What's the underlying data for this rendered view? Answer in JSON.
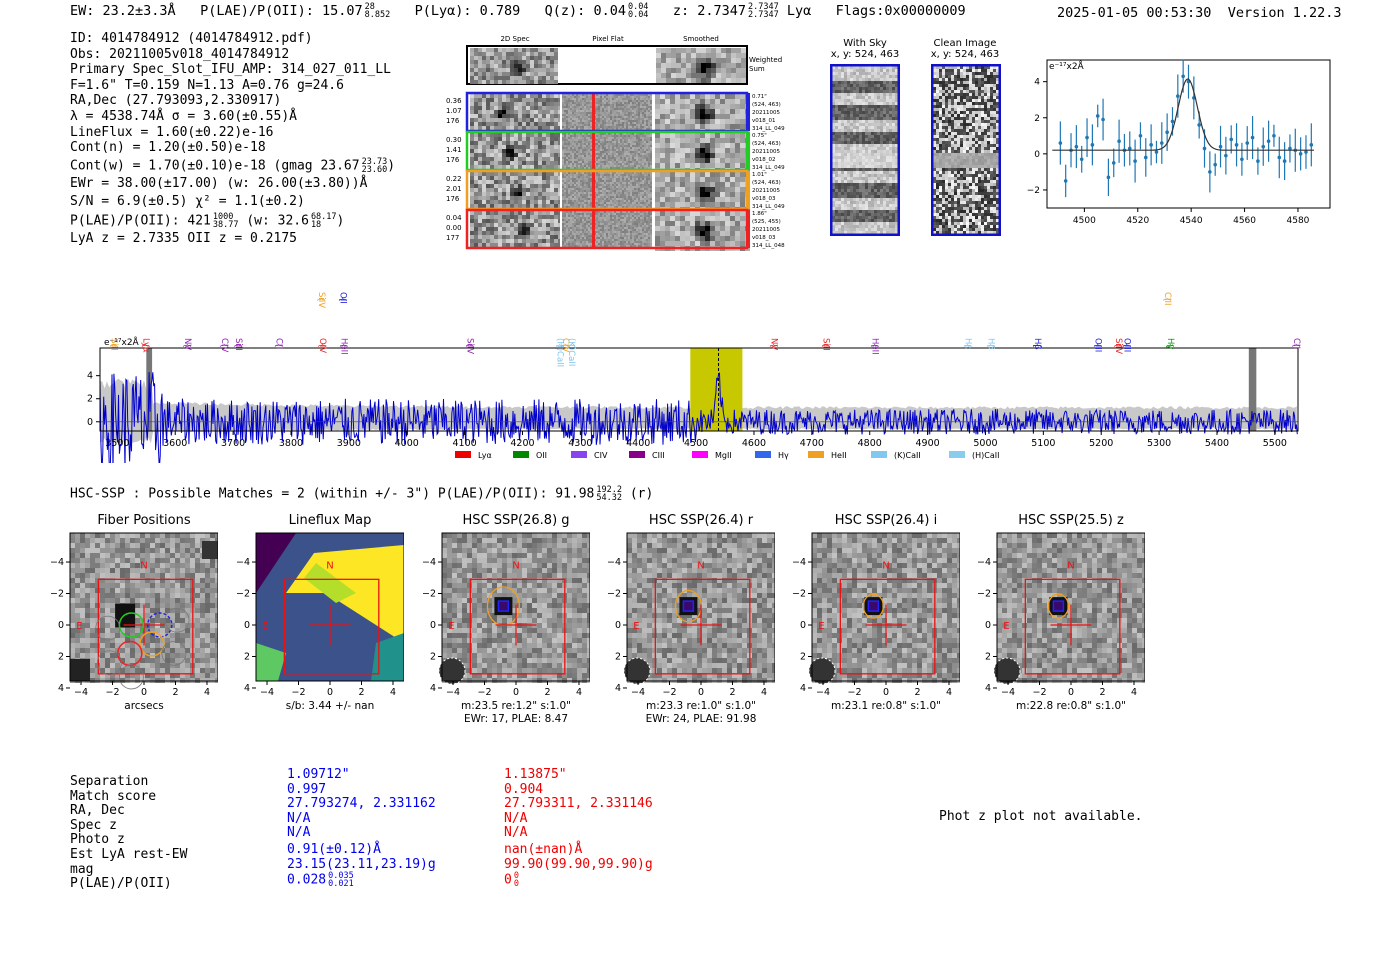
{
  "header": {
    "ew": "EW: 23.2±3.3Å",
    "plae_label": "P(LAE)/P(OII): 15.07",
    "plae_hi": "28",
    "plae_lo": "8.852",
    "plya": "P(Lyα): 0.789",
    "qz_label": "Q(z): 0.04",
    "qz_hi": "0.04",
    "qz_lo": "0.04",
    "z_label": "z: 2.7347",
    "z_hi": "2.7347",
    "z_lo": "2.7347",
    "line": "Lyα",
    "flags": "Flags:0x00000009",
    "datetime": "2025-01-05 00:53:30",
    "version": "Version 1.22.3"
  },
  "info": {
    "id": "ID: 4014784912 (4014784912.pdf)",
    "obs": "Obs: 20211005v018_4014784912",
    "primary": "Primary Spec_Slot_IFU_AMP: 314_027_011_LL",
    "fiber": "F=1.6\"  T=0.159  N=1.13  A=0.76  g=24.6",
    "radec": "RA,Dec (27.793093,2.330917)",
    "lambda": "λ = 4538.74Å  σ = 3.60(±0.55)Å",
    "lineflux": "LineFlux = 1.60(±0.22)e-16",
    "contn": "Cont(n) = 1.20(±0.50)e-18",
    "contw": "Cont(w) = 1.70(±0.10)e-18 (gmag 23.67",
    "contw_hi": "23.73",
    "contw_lo": "23.60",
    "ewr": "EWr = 38.00(±17.00) (w: 26.00(±3.80))Å",
    "sn": "S/N = 6.9(±0.5)  χ² = 1.1(±0.2)",
    "plae": "P(LAE)/P(OII): 421",
    "plae_hi": "1000",
    "plae_lo": "38.77",
    "plae_w": "(w: 32.6",
    "plae_w_hi": "68.17",
    "plae_w_lo": "18",
    "lyaz": "LyA z = 2.7335  OII z = 0.2175"
  },
  "spec2d": {
    "col_labels": [
      "2D Spec",
      "Pixel Flat",
      "Smoothed"
    ],
    "weighted_sum": "Weighted\nSum",
    "rows": [
      {
        "l1": "0.36",
        "l2": "1.07",
        "l3": "176",
        "r1": "0.71\"",
        "r2": "(524, 463)",
        "r3": "20211005",
        "r4": "v018_01",
        "r5": "314_LL_049",
        "color": "#2222dd"
      },
      {
        "l1": "0.30",
        "l2": "1.41",
        "l3": "176",
        "r1": "0.75\"",
        "r2": "(524, 463)",
        "r3": "20211005",
        "r4": "v018_02",
        "r5": "314_LL_049",
        "color": "#22cc22"
      },
      {
        "l1": "0.22",
        "l2": "2.01",
        "l3": "176",
        "r1": "1.01\"",
        "r2": "(524, 463)",
        "r3": "20211005",
        "r4": "v018_03",
        "r5": "314_LL_049",
        "color": "#f0a020"
      },
      {
        "l1": "0.04",
        "l2": "0.00",
        "l3": "177",
        "r1": "1.86\"",
        "r2": "(525, 455)",
        "r3": "20211005",
        "r4": "v018_03",
        "r5": "314_LL_048",
        "color": "#ee2222"
      }
    ]
  },
  "sky": {
    "with_sky": "With Sky",
    "with_sky_xy": "x, y: 524, 463",
    "clean": "Clean Image",
    "clean_xy": "x, y: 524, 463"
  },
  "line_fit": {
    "ylabel": "e⁻¹⁷x2Å",
    "xticks": [
      4500,
      4520,
      4540,
      4560,
      4580
    ],
    "yticks": [
      4,
      2,
      0,
      -2
    ],
    "xlim": [
      4486,
      4592
    ],
    "ylim": [
      -3.0,
      5.2
    ],
    "points": [
      [
        4491,
        0.6
      ],
      [
        4493,
        -1.5
      ],
      [
        4495,
        0.2
      ],
      [
        4497,
        0.4
      ],
      [
        4499,
        -0.3
      ],
      [
        4501,
        0.9
      ],
      [
        4503,
        0.5
      ],
      [
        4505,
        2.1
      ],
      [
        4507,
        1.9
      ],
      [
        4509,
        -1.3
      ],
      [
        4511,
        -0.5
      ],
      [
        4513,
        0.7
      ],
      [
        4515,
        0.2
      ],
      [
        4517,
        0.3
      ],
      [
        4519,
        -0.4
      ],
      [
        4521,
        1.0
      ],
      [
        4523,
        -0.2
      ],
      [
        4525,
        0.5
      ],
      [
        4527,
        0.1
      ],
      [
        4529,
        0.6
      ],
      [
        4531,
        1.2
      ],
      [
        4533,
        1.8
      ],
      [
        4535,
        3.2
      ],
      [
        4537,
        4.3
      ],
      [
        4539,
        4.0
      ],
      [
        4541,
        3.1
      ],
      [
        4543,
        1.6
      ],
      [
        4545,
        0.3
      ],
      [
        4547,
        -1.0
      ],
      [
        4549,
        -0.6
      ],
      [
        4551,
        0.4
      ],
      [
        4553,
        -0.1
      ],
      [
        4555,
        0.8
      ],
      [
        4557,
        0.5
      ],
      [
        4559,
        -0.3
      ],
      [
        4561,
        0.6
      ],
      [
        4563,
        0.9
      ],
      [
        4565,
        -0.4
      ],
      [
        4567,
        0.4
      ],
      [
        4569,
        0.7
      ],
      [
        4571,
        1.0
      ],
      [
        4573,
        -0.2
      ],
      [
        4575,
        -0.4
      ],
      [
        4577,
        0.3
      ],
      [
        4579,
        0.2
      ],
      [
        4581,
        0.0
      ],
      [
        4583,
        0.1
      ],
      [
        4585,
        0.5
      ]
    ],
    "fit_center": 4538.74,
    "fit_sigma": 3.6,
    "fit_amp": 3.95,
    "fit_baseline": 0.2
  },
  "full_spectrum": {
    "ylabel": "e⁻¹⁷x2Å",
    "xlim": [
      3470,
      5540
    ],
    "ylim": [
      -0.8,
      6.4
    ],
    "xticks": [
      3500,
      3600,
      3700,
      3800,
      3900,
      4000,
      4100,
      4200,
      4300,
      4400,
      4500,
      4600,
      4700,
      4800,
      4900,
      5000,
      5100,
      5200,
      5300,
      5400,
      5500
    ],
    "yticks": [
      4,
      2,
      0
    ],
    "highlight_range": [
      4490,
      4580
    ],
    "line_marker": 4538.74,
    "gray_bars": [
      [
        3550,
        3560
      ],
      [
        5455,
        5468
      ]
    ],
    "line_labels": [
      {
        "name": "SiII",
        "x": 3485,
        "color": "#f0a020",
        "row": 0
      },
      {
        "name": "Lyα",
        "x": 3540,
        "color": "#ee2222",
        "row": 0
      },
      {
        "name": "NV",
        "x": 3612,
        "color": "#9020b0",
        "row": 0
      },
      {
        "name": "CIV",
        "x": 3676,
        "color": "#9020b0",
        "row": 0
      },
      {
        "name": "SiII",
        "x": 3700,
        "color": "#9020b0",
        "row": 0
      },
      {
        "name": "CII",
        "x": 3770,
        "color": "#9020b0",
        "row": 0
      },
      {
        "name": "SiIV",
        "x": 3843,
        "color": "#f0a020",
        "row": 1
      },
      {
        "name": "OIV",
        "x": 3845,
        "color": "#ee2222",
        "row": 0
      },
      {
        "name": "OII",
        "x": 3880,
        "color": "#2222dd",
        "row": 1
      },
      {
        "name": "HeII",
        "x": 3882,
        "color": "#9020b0",
        "row": 0
      },
      {
        "name": "SiIV",
        "x": 4100,
        "color": "#9020b0",
        "row": 0
      },
      {
        "name": "(H)CaII",
        "x": 4255,
        "color": "#80c8f0",
        "row": 0
      },
      {
        "name": "CIV",
        "x": 4265,
        "color": "#f0a020",
        "row": 0
      },
      {
        "name": "(K)CaII",
        "x": 4275,
        "color": "#80c8f0",
        "row": 0
      },
      {
        "name": "NV",
        "x": 4625,
        "color": "#ee2222",
        "row": 0
      },
      {
        "name": "SiII",
        "x": 4715,
        "color": "#ee2222",
        "row": 0
      },
      {
        "name": "HeII",
        "x": 4800,
        "color": "#9020b0",
        "row": 0
      },
      {
        "name": "Hε",
        "x": 4960,
        "color": "#80c8f0",
        "row": 0
      },
      {
        "name": "Hδ",
        "x": 5000,
        "color": "#80c8f0",
        "row": 0
      },
      {
        "name": "Hβ",
        "x": 5080,
        "color": "#2222dd",
        "row": 0
      },
      {
        "name": "OIII",
        "x": 5185,
        "color": "#2222dd",
        "row": 0
      },
      {
        "name": "SiIV",
        "x": 5220,
        "color": "#ee2222",
        "row": 0
      },
      {
        "name": "OIII",
        "x": 5235,
        "color": "#2222dd",
        "row": 0
      },
      {
        "name": "CIII",
        "x": 5305,
        "color": "#f0a020",
        "row": 1
      },
      {
        "name": "Hγ",
        "x": 5310,
        "color": "#009900",
        "row": 0
      },
      {
        "name": "CII",
        "x": 5528,
        "color": "#9020b0",
        "row": 0
      }
    ],
    "legend": [
      {
        "name": "Lyα",
        "color": "#ee0000"
      },
      {
        "name": "OII",
        "color": "#008800"
      },
      {
        "name": "CIV",
        "color": "#8844ee"
      },
      {
        "name": "CIII",
        "color": "#880088"
      },
      {
        "name": "MgII",
        "color": "#ff00ff"
      },
      {
        "name": "Hγ",
        "color": "#3366ee"
      },
      {
        "name": "HeII",
        "color": "#f0a020"
      },
      {
        "name": "(K)CaII",
        "color": "#80c8f0"
      },
      {
        "name": "(H)CaII",
        "color": "#88ccee"
      }
    ]
  },
  "hsc": {
    "header": "HSC-SSP : Possible Matches = 2 (within +/- 3\")  P(LAE)/P(OII): 91.98",
    "header_hi": "192.2",
    "header_lo": "54.32",
    "header_band": "(r)",
    "cutouts": [
      {
        "title": "Fiber Positions",
        "cap1": "arcsecs",
        "cap2": "",
        "kind": "fiber"
      },
      {
        "title": "Lineflux Map",
        "cap1": "s/b: 3.44 +/- nan",
        "cap2": "",
        "kind": "lineflux"
      },
      {
        "title": "HSC SSP(26.8) g",
        "cap1": "m:23.5  re:1.2\"  s:1.0\"",
        "cap2": "EWr: 17, PLAE: 8.47",
        "kind": "hsc",
        "ell": "big"
      },
      {
        "title": "HSC SSP(26.4) r",
        "cap1": "m:23.3  re:1.0\"  s:1.0\"",
        "cap2": "EWr: 24, PLAE: 91.98",
        "kind": "hsc",
        "ell": "mid"
      },
      {
        "title": "HSC SSP(26.4) i",
        "cap1": "m:23.1  re:0.8\"  s:1.0\"",
        "cap2": "",
        "kind": "hsc",
        "ell": "small"
      },
      {
        "title": "HSC SSP(25.5) z",
        "cap1": "m:22.8  re:0.8\"  s:1.0\"",
        "cap2": "",
        "kind": "hsc",
        "ell": "small"
      }
    ],
    "ticks": [
      "−4",
      "−2",
      "0",
      "2",
      "4"
    ],
    "north": "N",
    "east": "E"
  },
  "matches": {
    "labels": [
      "Separation",
      "Match score",
      "RA, Dec",
      "Spec z",
      "Photo z",
      "Est LyA rest-EW",
      "mag",
      "P(LAE)/P(OII)"
    ],
    "col1": [
      "1.09712\"",
      "0.997",
      "27.793274, 2.331162",
      "N/A",
      "N/A",
      "0.91(±0.12)Å",
      "23.15(23.11,23.19)g",
      "0.028"
    ],
    "col1_hi": "0.035",
    "col1_lo": "0.021",
    "col2": [
      "1.13875\"",
      "0.904",
      "27.793311, 2.331146",
      "N/A",
      "N/A",
      "nan(±nan)Å",
      "99.90(99.90,99.90)g",
      "0"
    ],
    "col2_hi": "0",
    "col2_lo": "0",
    "photz_msg": "Phot z plot not available."
  },
  "colors": {
    "blue": "#0000ee",
    "red": "#ee0000",
    "yellow": "#c8c800",
    "spec": "#0000cc"
  }
}
